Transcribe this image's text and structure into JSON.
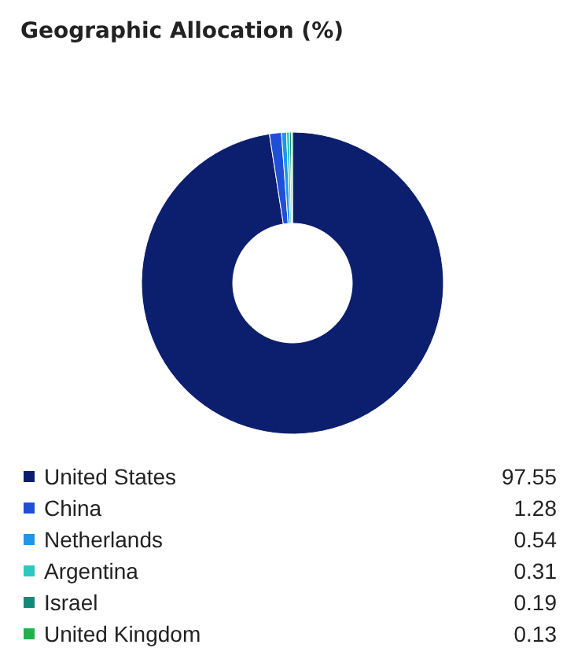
{
  "chart_data": {
    "type": "donut",
    "title": "Geographic Allocation (%)",
    "categories": [
      "United States",
      "China",
      "Netherlands",
      "Argentina",
      "Israel",
      "United Kingdom"
    ],
    "values": [
      97.55,
      1.28,
      0.54,
      0.31,
      0.19,
      0.13
    ],
    "colors": [
      "#0c1f6e",
      "#1f4fd6",
      "#1e96ea",
      "#2cc8c0",
      "#138a78",
      "#22b04a"
    ],
    "value_labels": [
      "97.55",
      "1.28",
      "0.54",
      "0.31",
      "0.19",
      "0.13"
    ],
    "legend": "bottom"
  }
}
